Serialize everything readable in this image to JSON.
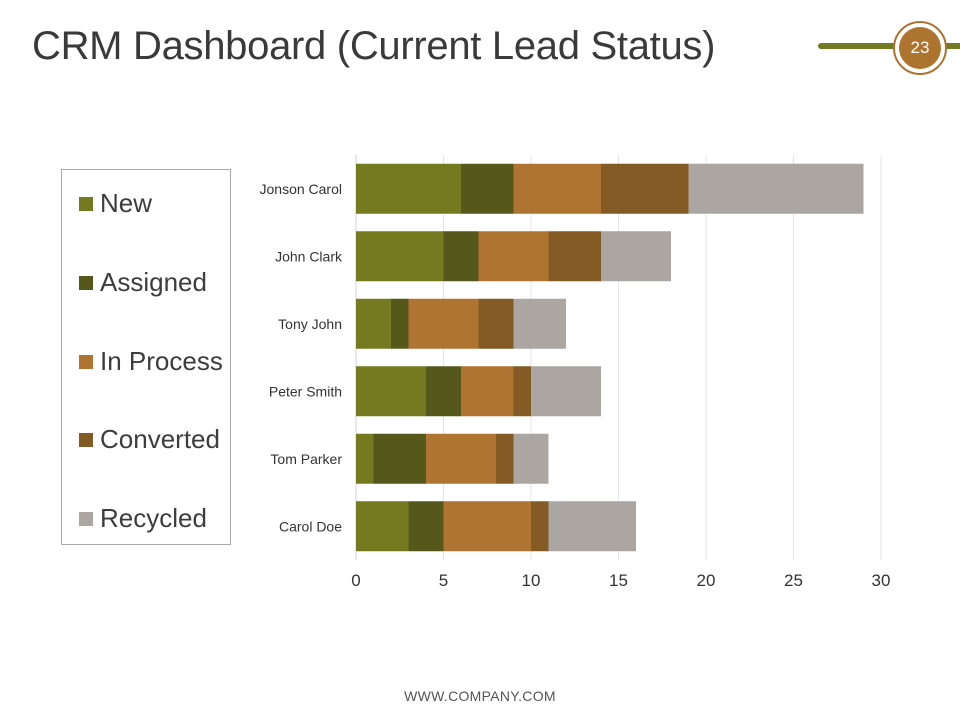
{
  "slide": {
    "title": "CRM Dashboard (Current Lead Status)",
    "page_number": "23",
    "footer": "WWW.COMPANY.COM"
  },
  "colors": {
    "accent_green": "#737b24",
    "accent_brown": "#ad7430"
  },
  "chart_data": {
    "type": "bar",
    "orientation": "horizontal",
    "stacked": true,
    "categories": [
      "Jonson Carol",
      "John Clark",
      "Tony John",
      "Peter Smith",
      "Tom Parker",
      "Carol Doe"
    ],
    "series": [
      {
        "name": "New",
        "color": "#757a21",
        "values": [
          6,
          5,
          2,
          4,
          1,
          3
        ]
      },
      {
        "name": "Assigned",
        "color": "#56581b",
        "values": [
          3,
          2,
          1,
          2,
          3,
          2
        ]
      },
      {
        "name": "In Process",
        "color": "#b07432",
        "values": [
          5,
          4,
          4,
          3,
          4,
          5
        ]
      },
      {
        "name": "Converted",
        "color": "#845a25",
        "values": [
          5,
          3,
          2,
          1,
          1,
          1
        ]
      },
      {
        "name": "Recycled",
        "color": "#aca6a3",
        "values": [
          10,
          4,
          3,
          4,
          2,
          5
        ]
      }
    ],
    "xlim": [
      0,
      30
    ],
    "xticks": [
      "0",
      "5",
      "10",
      "15",
      "20",
      "25",
      "30"
    ],
    "grid": true,
    "legend": "left"
  }
}
